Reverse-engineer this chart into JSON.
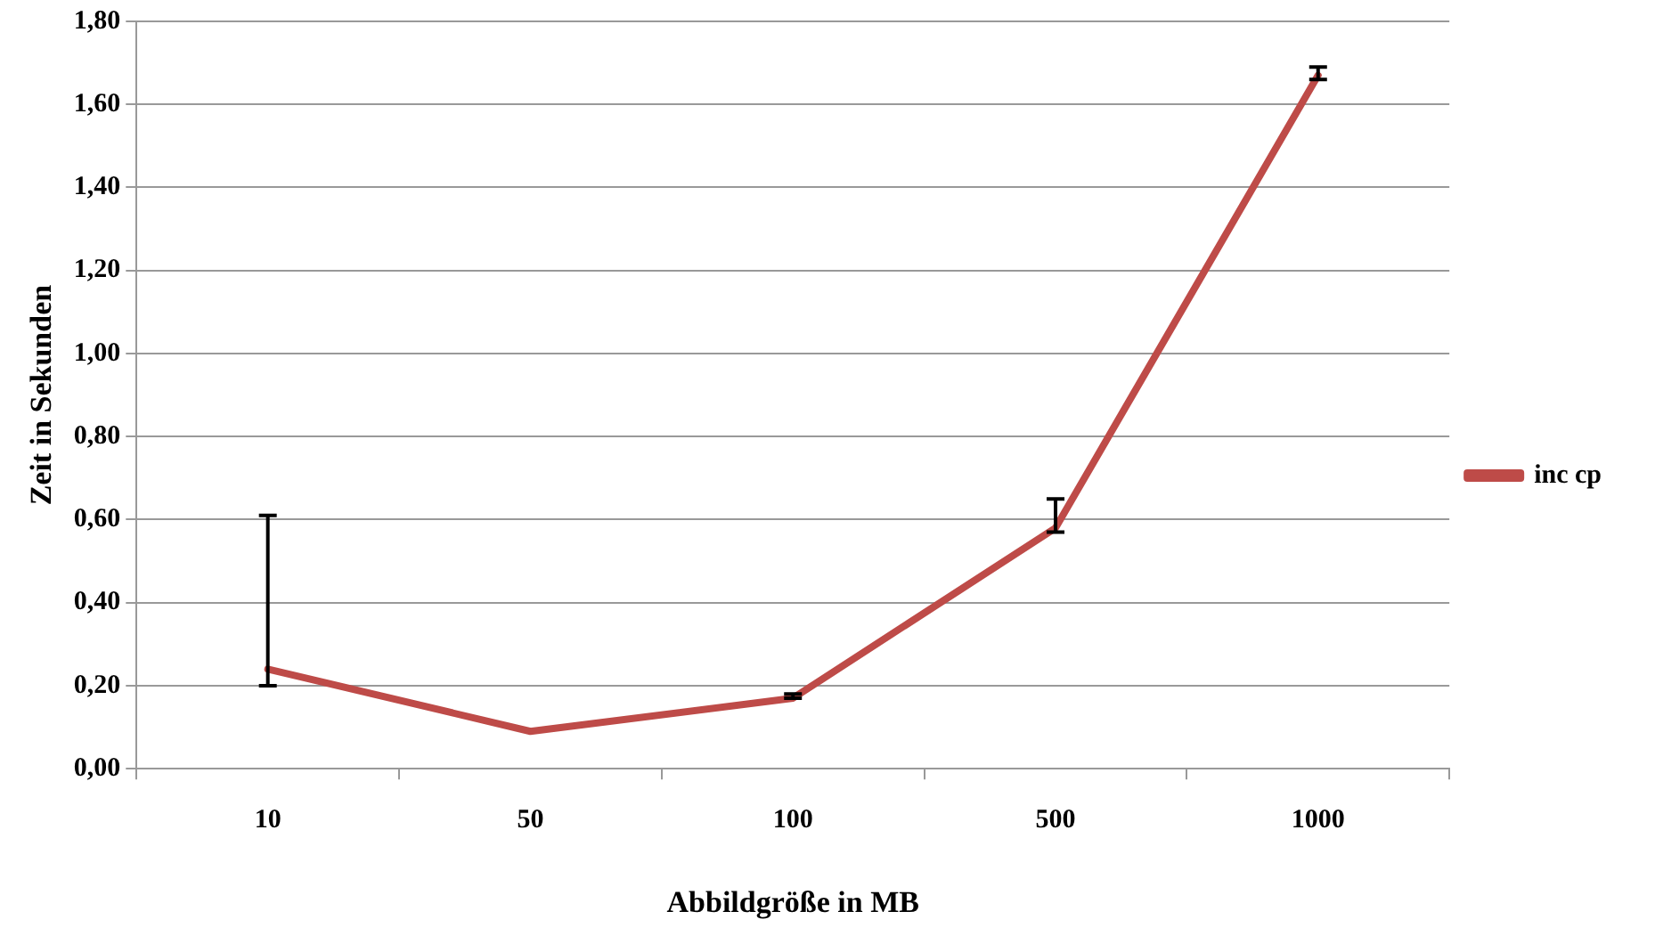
{
  "chart_data": {
    "type": "line",
    "xlabel": "Abbildgröße in MB",
    "ylabel": "Zeit in Sekunden",
    "categories": [
      "10",
      "50",
      "100",
      "500",
      "1000"
    ],
    "series": [
      {
        "name": "inc cp",
        "color": "#be4b48",
        "values": [
          0.24,
          0.09,
          0.17,
          0.58,
          1.67
        ],
        "errors": [
          [
            0.2,
            0.61
          ],
          null,
          [
            0.17,
            0.18
          ],
          [
            0.57,
            0.65
          ],
          [
            1.66,
            1.69
          ]
        ]
      }
    ],
    "ylim": [
      0,
      1.8
    ],
    "yticks": [
      {
        "value": 0,
        "label": "0,00"
      },
      {
        "value": 0.2,
        "label": "0,20"
      },
      {
        "value": 0.4,
        "label": "0,40"
      },
      {
        "value": 0.6,
        "label": "0,60"
      },
      {
        "value": 0.8,
        "label": "0,80"
      },
      {
        "value": 1,
        "label": "1,00"
      },
      {
        "value": 1.2,
        "label": "1,20"
      },
      {
        "value": 1.4,
        "label": "1,40"
      },
      {
        "value": 1.6,
        "label": "1,60"
      },
      {
        "value": 1.8,
        "label": "1,80"
      }
    ],
    "grid": "y",
    "legend": "right",
    "marker": "none",
    "line_style": "solid"
  }
}
